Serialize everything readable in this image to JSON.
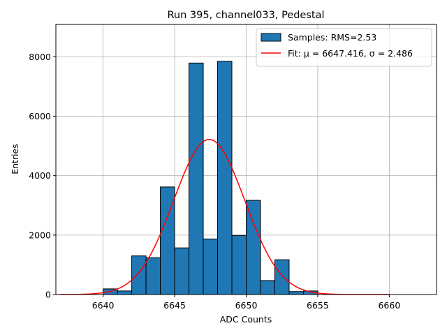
{
  "chart_data": {
    "type": "bar",
    "title": "Run 395, channel033, Pedestal",
    "xlabel": "ADC Counts",
    "ylabel": "Entries",
    "xlim": [
      6636.7,
      6663.3
    ],
    "ylim": [
      0,
      9090
    ],
    "xticks": [
      6640,
      6645,
      6650,
      6655,
      6660
    ],
    "yticks": [
      0,
      2000,
      4000,
      6000,
      8000
    ],
    "grid": true,
    "legend_position": "top-right",
    "bin_width": 1,
    "bins": [
      {
        "left": 6640,
        "count": 190
      },
      {
        "left": 6641,
        "count": 120
      },
      {
        "left": 6642,
        "count": 1300
      },
      {
        "left": 6643,
        "count": 1240
      },
      {
        "left": 6644,
        "count": 3620
      },
      {
        "left": 6645,
        "count": 1570
      },
      {
        "left": 6646,
        "count": 7790
      },
      {
        "left": 6647,
        "count": 1870
      },
      {
        "left": 6648,
        "count": 7850
      },
      {
        "left": 6649,
        "count": 1990
      },
      {
        "left": 6650,
        "count": 3170
      },
      {
        "left": 6651,
        "count": 470
      },
      {
        "left": 6652,
        "count": 1170
      },
      {
        "left": 6653,
        "count": 100
      },
      {
        "left": 6654,
        "count": 120
      }
    ],
    "fit": {
      "mu": 6647.416,
      "sigma": 2.486,
      "amplitude": 5220,
      "x_range": [
        6637,
        6660
      ]
    },
    "series": [
      {
        "name": "Samples: RMS=2.53",
        "kind": "histogram",
        "color": "#1f77b4"
      },
      {
        "name": "Fit: μ = 6647.416, σ = 2.486",
        "kind": "line",
        "color": "#ff0000"
      }
    ]
  }
}
